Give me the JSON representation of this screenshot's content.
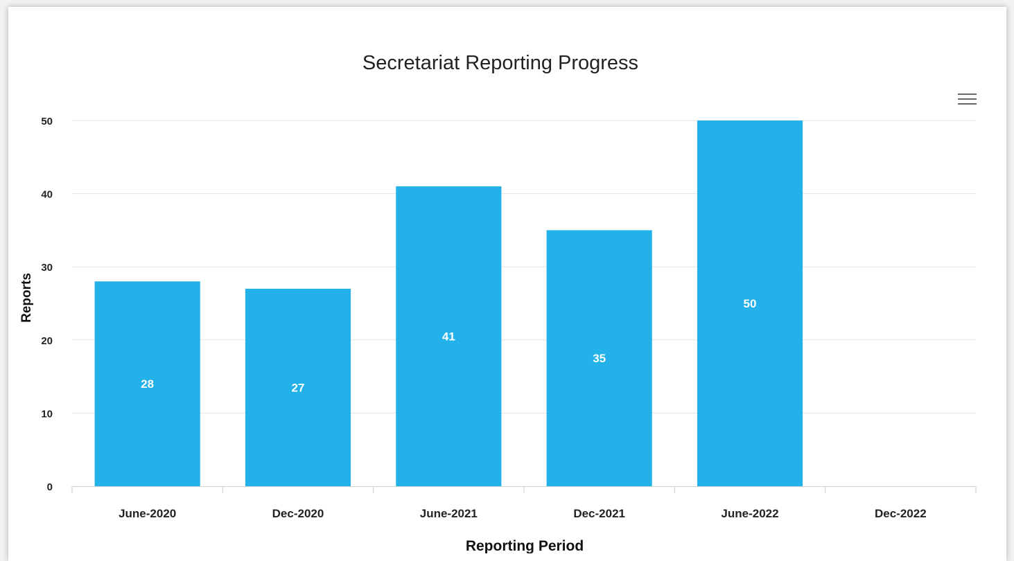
{
  "chart_data": {
    "type": "bar",
    "title": "Secretariat Reporting Progress",
    "xlabel": "Reporting Period",
    "ylabel": "Reports",
    "categories": [
      "June-2020",
      "Dec-2020",
      "June-2021",
      "Dec-2021",
      "June-2022",
      "Dec-2022"
    ],
    "values": [
      28,
      27,
      41,
      35,
      50,
      null
    ],
    "data_labels": [
      "28",
      "27",
      "41",
      "35",
      "50",
      ""
    ],
    "ylim": [
      0,
      50
    ],
    "yticks": [
      "0",
      "10",
      "20",
      "30",
      "40",
      "50"
    ],
    "grid": true,
    "bar_color": "#22b1e8",
    "legend": "none"
  },
  "toolbar": {
    "menu_icon": "hamburger-menu-icon"
  }
}
